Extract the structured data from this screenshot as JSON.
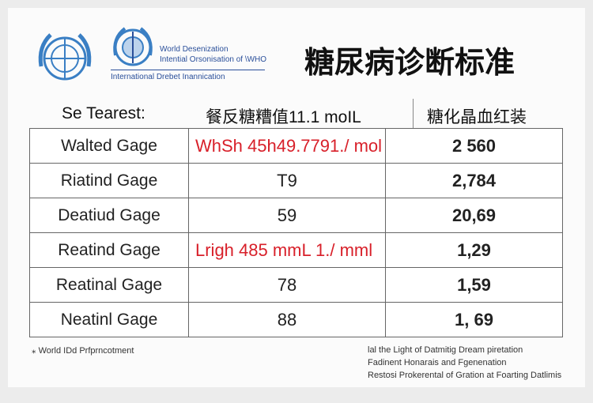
{
  "header": {
    "org_lines": [
      "World Desenization",
      "Intential Orsonisation of \\WHO"
    ],
    "subtitle": "International Drebet Inannication",
    "title": "糖尿病诊断标准"
  },
  "table": {
    "columns": [
      "Se Tearest:",
      "餐反糖糟值11.1 moIL",
      "糖化晶血红装"
    ],
    "rows": [
      [
        "Walted Gage",
        "WhSh 45h49.7791./ mol",
        "2 560"
      ],
      [
        "Riatind Gage",
        "T9",
        "2,784"
      ],
      [
        "Deatiud Gage",
        "59",
        "20,69"
      ],
      [
        "Reatind Gage",
        "Lrigh 485 mmL 1./ mml",
        "1,29"
      ],
      [
        "Reatinal Gage",
        "78",
        "1,59"
      ],
      [
        "Neatinl Gage",
        "88",
        "1, 69"
      ]
    ]
  },
  "footer": {
    "left": "World IDd Prfprncotment",
    "right": [
      "lal the Light of Datmitig Dream piretation",
      "Fadinent Honarais and Fgenenation",
      "Restosi Prokerental of Gration at Foarting Datlimis"
    ]
  }
}
